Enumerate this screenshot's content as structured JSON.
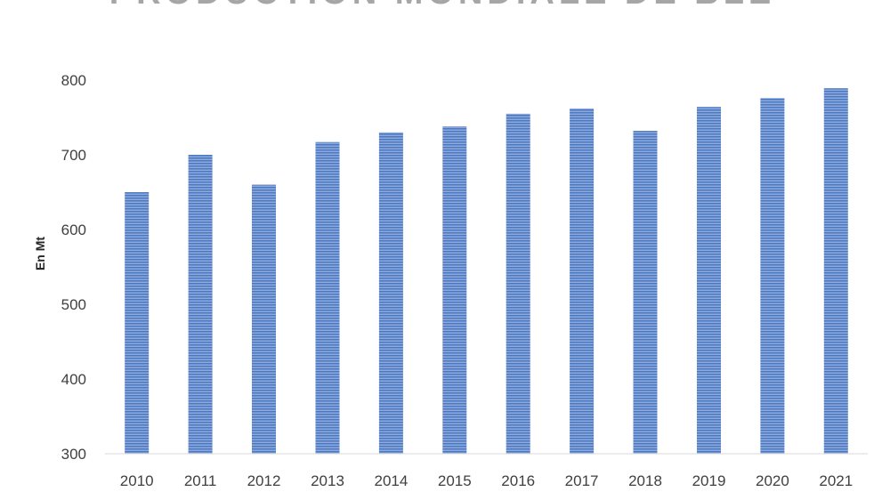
{
  "chart_data": {
    "type": "bar",
    "title": "PRODUCTION MONDIALE DE BLÉ",
    "xlabel": "",
    "ylabel": "En Mt",
    "categories": [
      "2010",
      "2011",
      "2012",
      "2013",
      "2014",
      "2015",
      "2016",
      "2017",
      "2018",
      "2019",
      "2020",
      "2021"
    ],
    "values": [
      650,
      700,
      660,
      717,
      730,
      738,
      755,
      762,
      732,
      764,
      776,
      789
    ],
    "ylim": [
      300,
      800
    ],
    "yticks": [
      300,
      400,
      500,
      600,
      700,
      800
    ],
    "grid": false,
    "legend": "none",
    "colors": {
      "bar_fill": "#8eaadb",
      "bar_stripe": "#4a78c2",
      "axis": "#d9d9d9",
      "title": "#a6a6a6"
    }
  }
}
